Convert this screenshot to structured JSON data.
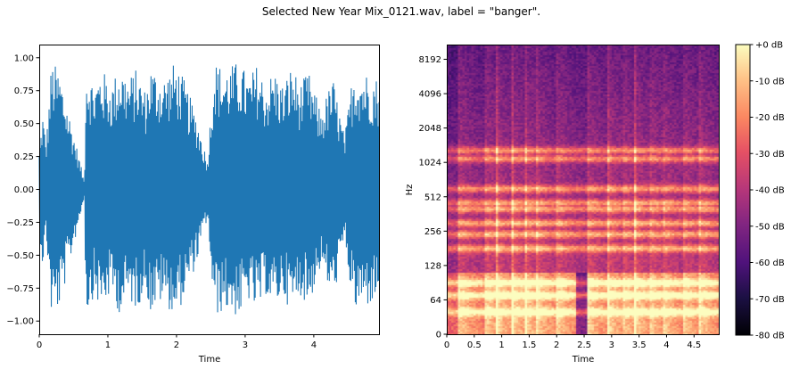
{
  "suptitle": "Selected New Year Mix_0121.wav, label = \"banger\".",
  "chart_data": [
    {
      "type": "area",
      "name": "waveform",
      "xlabel": "Time",
      "ylabel": "",
      "xlim": [
        0,
        4.95
      ],
      "ylim": [
        -1.1,
        1.1
      ],
      "xticks": [
        0,
        1,
        2,
        3,
        4
      ],
      "yticks": [
        -1.0,
        -0.75,
        -0.5,
        -0.25,
        0.0,
        0.25,
        0.5,
        0.75,
        1.0
      ],
      "ytick_labels": [
        "−1.00",
        "−0.75",
        "−0.50",
        "−0.25",
        "0.00",
        "0.25",
        "0.50",
        "0.75",
        "1.00"
      ],
      "color": "#1f77b4",
      "grid": false,
      "onsets": [
        0.18,
        0.68,
        0.9,
        1.18,
        1.42,
        1.62,
        1.98,
        2.55,
        2.92,
        3.18,
        3.42,
        3.68,
        3.92,
        4.28,
        4.58
      ],
      "envelope": {
        "x": [
          0.0,
          0.05,
          0.1,
          0.18,
          0.3,
          0.45,
          0.6,
          0.66,
          0.68,
          0.8,
          0.9,
          1.05,
          1.18,
          1.3,
          1.42,
          1.55,
          1.62,
          1.8,
          1.98,
          2.1,
          2.3,
          2.45,
          2.55,
          2.7,
          2.92,
          3.05,
          3.18,
          3.3,
          3.42,
          3.55,
          3.68,
          3.8,
          3.92,
          4.1,
          4.28,
          4.45,
          4.58,
          4.75,
          4.95
        ],
        "y": [
          0.3,
          0.6,
          0.35,
          0.98,
          0.9,
          0.55,
          0.2,
          0.05,
          0.98,
          0.8,
          0.93,
          0.8,
          0.96,
          0.85,
          0.92,
          0.75,
          0.95,
          0.85,
          0.97,
          0.85,
          0.55,
          0.22,
          0.98,
          0.92,
          0.98,
          0.85,
          0.96,
          0.8,
          0.92,
          0.8,
          0.95,
          0.8,
          0.9,
          0.6,
          0.85,
          0.4,
          0.95,
          0.9,
          0.85
        ]
      }
    },
    {
      "type": "heatmap",
      "name": "spectrogram",
      "xlabel": "Time",
      "ylabel": "Hz",
      "xlim": [
        0,
        4.95
      ],
      "xticks": [
        0,
        0.5,
        1,
        1.5,
        2,
        2.5,
        3,
        3.5,
        4,
        4.5
      ],
      "xtick_labels": [
        "0",
        "0.5",
        "1",
        "1.5",
        "2",
        "2.5",
        "3",
        "3.5",
        "4",
        "4.5"
      ],
      "yscale": "log",
      "yticks": [
        0,
        64,
        128,
        256,
        512,
        1024,
        2048,
        4096,
        8192
      ],
      "colormap": "magma",
      "colorbar": {
        "range_db": [
          -80,
          0
        ],
        "ticks": [
          "+0 dB",
          "-10 dB",
          "-20 dB",
          "-30 dB",
          "-40 dB",
          "-50 dB",
          "-60 dB",
          "-70 dB",
          "-80 dB"
        ]
      },
      "onsets": [
        0.18,
        0.68,
        0.9,
        1.18,
        1.42,
        1.62,
        1.98,
        2.55,
        2.92,
        3.18,
        3.42,
        3.68,
        3.92,
        4.28,
        4.58
      ],
      "tonal_bands_hz": [
        50,
        70,
        90,
        180,
        240,
        300,
        400,
        450,
        600,
        1100,
        1300
      ]
    }
  ]
}
